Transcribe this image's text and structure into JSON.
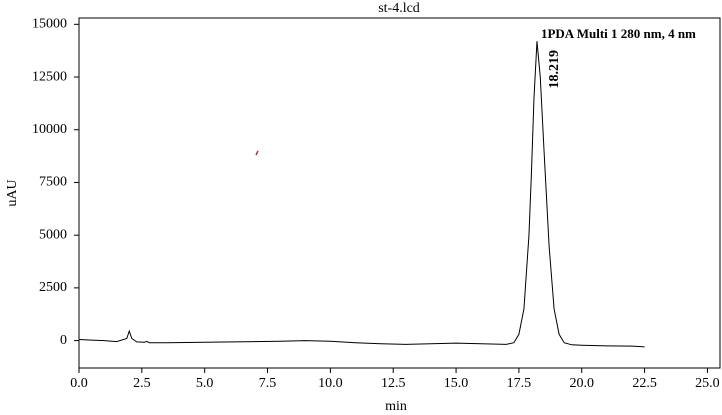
{
  "chart_data": {
    "type": "line",
    "title": "st-4.lcd",
    "xlabel": "min",
    "ylabel": "uAU",
    "xlim": [
      0,
      25.5
    ],
    "ylim": [
      -1300,
      15300
    ],
    "xticks": [
      {
        "value": 0,
        "label": "0.0"
      },
      2.5,
      {
        "value": 5,
        "label": "5.0"
      },
      7.5,
      {
        "value": 10,
        "label": "10.0"
      },
      12.5,
      {
        "value": 15,
        "label": "15.0"
      },
      17.5,
      {
        "value": 20,
        "label": "20.0"
      },
      22.5,
      {
        "value": 25,
        "label": "25.0"
      }
    ],
    "yticks": [
      0,
      2500,
      5000,
      7500,
      10000,
      12500,
      15000
    ],
    "series": [
      {
        "name": "1PDA Multi 1 280 nm, 4 nm",
        "color": "#000000",
        "x": [
          0,
          0.5,
          1,
          1.5,
          1.9,
          2.0,
          2.1,
          2.3,
          2.6,
          2.7,
          2.8,
          3.5,
          5,
          7,
          8,
          9,
          10,
          11,
          12,
          13,
          14,
          15,
          16,
          17,
          17.3,
          17.5,
          17.7,
          17.9,
          18.0,
          18.1,
          18.219,
          18.35,
          18.5,
          18.7,
          18.9,
          19.1,
          19.3,
          19.6,
          20,
          21,
          22,
          22.5
        ],
        "values": [
          50,
          20,
          0,
          -50,
          100,
          450,
          100,
          -60,
          -80,
          -40,
          -100,
          -100,
          -80,
          -50,
          -30,
          0,
          -30,
          -100,
          -150,
          -180,
          -150,
          -120,
          -150,
          -180,
          -100,
          300,
          1500,
          5000,
          8000,
          11500,
          14200,
          12500,
          9000,
          4500,
          1500,
          300,
          -100,
          -200,
          -220,
          -250,
          -260,
          -300
        ]
      }
    ],
    "annotations": [
      {
        "text": "18.219",
        "x": 18.219,
        "y": 14200
      }
    ]
  }
}
